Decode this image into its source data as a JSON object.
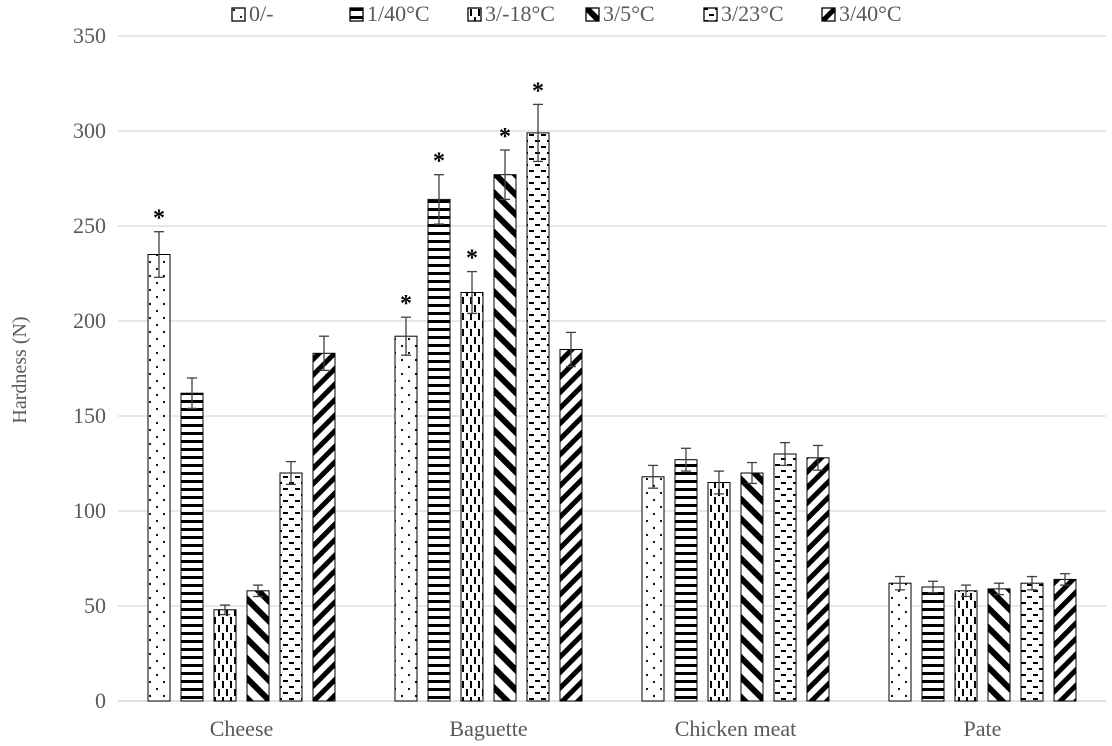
{
  "chart_data": {
    "type": "bar",
    "ylabel": "Hardness (N)",
    "ylim": [
      0,
      350
    ],
    "yticks": [
      0,
      50,
      100,
      150,
      200,
      250,
      300,
      350
    ],
    "grid": true,
    "legend_position": "top",
    "categories": [
      "Cheese",
      "Baguette",
      "Chicken meat",
      "Pate"
    ],
    "series": [
      {
        "name": "0/-",
        "pattern": "dots",
        "values": [
          235,
          192,
          118,
          62
        ],
        "errors": [
          12,
          10,
          6,
          3.5
        ],
        "significant": [
          true,
          true,
          false,
          false
        ]
      },
      {
        "name": "1/40°C",
        "pattern": "horizontal",
        "values": [
          162,
          264,
          127,
          60
        ],
        "errors": [
          8,
          13,
          6,
          3
        ],
        "significant": [
          false,
          true,
          false,
          false
        ]
      },
      {
        "name": "3/-18°C",
        "pattern": "vertical-dash",
        "values": [
          48,
          215,
          115,
          58
        ],
        "errors": [
          2.5,
          11,
          6,
          3
        ],
        "significant": [
          false,
          true,
          false,
          false
        ]
      },
      {
        "name": "3/5°C",
        "pattern": "diagonal-wide",
        "values": [
          58,
          277,
          120,
          59
        ],
        "errors": [
          3,
          13,
          5.5,
          3
        ],
        "significant": [
          false,
          true,
          false,
          false
        ]
      },
      {
        "name": "3/23°C",
        "pattern": "dashes",
        "values": [
          120,
          299,
          130,
          62
        ],
        "errors": [
          6,
          15,
          6,
          3.5
        ],
        "significant": [
          false,
          true,
          false,
          false
        ]
      },
      {
        "name": "3/40°C",
        "pattern": "diagonal",
        "values": [
          183,
          185,
          128,
          64
        ],
        "errors": [
          9,
          9,
          6.5,
          3
        ],
        "significant": [
          false,
          false,
          false,
          false
        ]
      }
    ],
    "significance_marker": "*"
  }
}
